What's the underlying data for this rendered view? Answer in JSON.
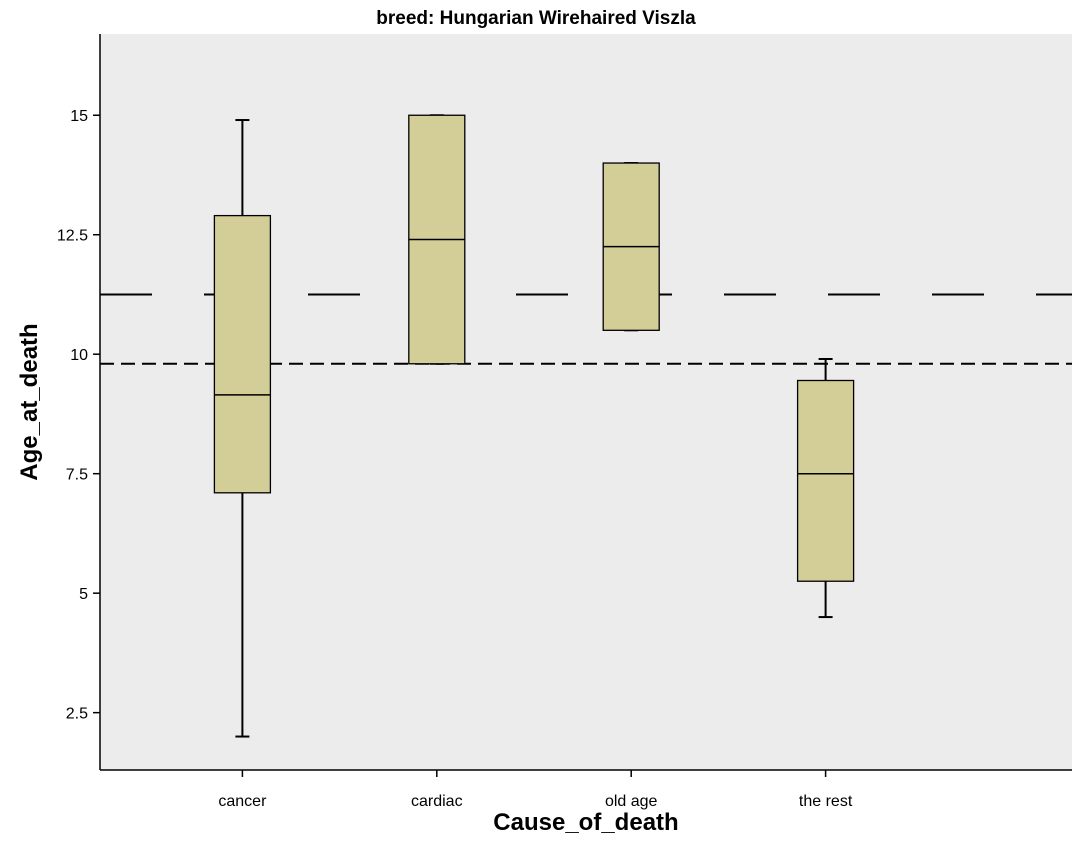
{
  "chart_data": {
    "type": "boxplot",
    "title": "breed: Hungarian Wirehaired Viszla",
    "xlabel": "Cause_of_death",
    "ylabel": "Age_at_death",
    "categories": [
      "cancer",
      "cardiac",
      "old age",
      "the rest"
    ],
    "ylim": [
      1.3,
      16.7
    ],
    "yticks": [
      2.5,
      5,
      7.5,
      10,
      12.5,
      15
    ],
    "ytick_labels": [
      "2.5",
      "5",
      "7.5",
      "10",
      "12.5",
      "15"
    ],
    "boxes": [
      {
        "category": "cancer",
        "whisker_low": 2.0,
        "q1": 7.1,
        "median": 9.15,
        "q3": 12.9,
        "whisker_high": 14.9
      },
      {
        "category": "cardiac",
        "whisker_low": 9.8,
        "q1": 9.8,
        "median": 12.4,
        "q3": 15.0,
        "whisker_high": 15.0
      },
      {
        "category": "old age",
        "whisker_low": 10.5,
        "q1": 10.5,
        "median": 12.25,
        "q3": 14.0,
        "whisker_high": 14.0
      },
      {
        "category": "the rest",
        "whisker_low": 4.5,
        "q1": 5.25,
        "median": 7.5,
        "q3": 9.45,
        "whisker_high": 9.9
      }
    ],
    "reference_lines": [
      {
        "y": 11.25,
        "style": "long-dash"
      },
      {
        "y": 9.8,
        "style": "short-dash"
      }
    ],
    "grid": false,
    "colors": {
      "plot_background": "#ececec",
      "box_fill": "#d3cd98",
      "stroke": "#000000"
    }
  }
}
